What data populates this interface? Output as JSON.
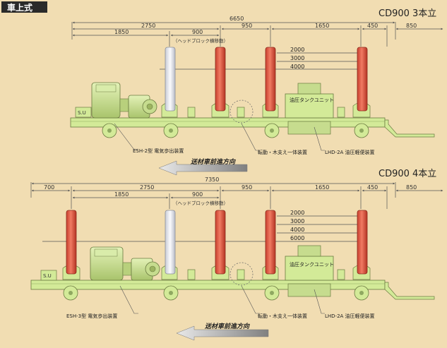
{
  "header": {
    "label": "車上式"
  },
  "panels": [
    {
      "title": "CD900 3本立",
      "total": "6650",
      "dims": [
        "2750",
        "1850",
        "900",
        "950",
        "1650",
        "450",
        "850"
      ],
      "head_note": "（ヘッドブロック横移動）",
      "heights": [
        "2000",
        "3000",
        "4000"
      ],
      "su": "S.U",
      "tank": "油圧タンクユニット",
      "labels": {
        "esh": "ESH-2型 電気歩出装置",
        "roll": "転動・木支え一体装置",
        "lhd": "LHD-2A 油圧軽便装置"
      },
      "direction": "送材車前進方向"
    },
    {
      "title": "CD900 4本立",
      "total": "7350",
      "dims": [
        "700",
        "2750",
        "1850",
        "900",
        "950",
        "1650",
        "450",
        "850"
      ],
      "head_note": "（ヘッドブロック横移動）",
      "heights": [
        "2000",
        "3000",
        "4000",
        "6000"
      ],
      "su": "S.U",
      "tank": "油圧タンクユニット",
      "labels": {
        "esh": "ESH-3型 電気歩出装置",
        "roll": "転動・木支え一体装置",
        "lhd": "LHD-2A 油圧軽便装置"
      },
      "direction": "送材車前進方向"
    }
  ],
  "colors": {
    "background": "#f1ddb2",
    "frame": "#d3ea98",
    "post": "#e8604b",
    "post_light": "#eef0f4",
    "line": "#333333"
  }
}
